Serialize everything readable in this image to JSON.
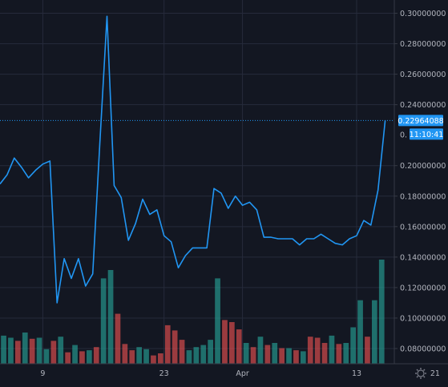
{
  "colors": {
    "background": "#131722",
    "grid": "#262b3b",
    "axis_text": "#b2b5be",
    "line": "#2196f3",
    "price_label_bg": "#2196f3",
    "volume_up": "#26a69a",
    "volume_down": "#ef5350"
  },
  "chart_data": {
    "type": "line",
    "ylim": [
      0.07,
      0.31
    ],
    "y_ticks": [
      "0.30000000",
      "0.28000000",
      "0.26000000",
      "0.24000000",
      "0.20000000",
      "0.18000000",
      "0.16000000",
      "0.14000000",
      "0.12000000",
      "0.10000000",
      "0.08000000"
    ],
    "y_tick_values": [
      0.3,
      0.28,
      0.26,
      0.24,
      0.2,
      0.18,
      0.16,
      0.14,
      0.12,
      0.1,
      0.08
    ],
    "x_ticks": [
      "9",
      "23",
      "Apr",
      "13",
      "21"
    ],
    "x_tick_index": [
      6,
      23,
      34,
      50,
      61
    ],
    "series": [
      {
        "values": [
          0.188,
          0.194,
          0.205,
          0.199,
          0.192,
          0.197,
          0.201,
          0.203,
          0.11,
          0.139,
          0.126,
          0.139,
          0.121,
          0.129,
          0.215,
          0.298,
          0.187,
          0.179,
          0.151,
          0.162,
          0.178,
          0.168,
          0.171,
          0.154,
          0.15,
          0.133,
          0.141,
          0.146,
          0.146,
          0.146,
          0.185,
          0.182,
          0.172,
          0.18,
          0.174,
          0.176,
          0.171,
          0.153,
          0.153,
          0.152,
          0.152,
          0.152,
          0.148,
          0.152,
          0.152,
          0.155,
          0.152,
          0.149,
          0.148,
          0.152,
          0.154,
          0.164,
          0.161,
          0.184,
          0.2296
        ]
      }
    ],
    "volume": {
      "values": [
        0.27,
        0.25,
        0.22,
        0.3,
        0.24,
        0.25,
        0.14,
        0.22,
        0.26,
        0.11,
        0.18,
        0.12,
        0.13,
        0.16,
        0.82,
        0.9,
        0.48,
        0.19,
        0.13,
        0.16,
        0.14,
        0.08,
        0.1,
        0.37,
        0.32,
        0.23,
        0.13,
        0.16,
        0.18,
        0.23,
        0.82,
        0.42,
        0.4,
        0.33,
        0.2,
        0.16,
        0.26,
        0.18,
        0.2,
        0.15,
        0.15,
        0.13,
        0.12,
        0.26,
        0.25,
        0.2,
        0.27,
        0.19,
        0.2,
        0.35,
        0.61,
        0.26,
        0.61,
        1.0
      ],
      "directions": [
        "up",
        "up",
        "down",
        "up",
        "down",
        "up",
        "up",
        "down",
        "up",
        "down",
        "up",
        "down",
        "up",
        "down",
        "up",
        "up",
        "down",
        "down",
        "down",
        "up",
        "up",
        "down",
        "down",
        "down",
        "down",
        "down",
        "up",
        "up",
        "up",
        "up",
        "up",
        "down",
        "down",
        "down",
        "up",
        "down",
        "up",
        "down",
        "up",
        "down",
        "up",
        "down",
        "up",
        "down",
        "down",
        "down",
        "up",
        "down",
        "up",
        "up",
        "up",
        "down",
        "up",
        "up"
      ]
    },
    "last_price": "0.22964088",
    "countdown": "11:10:41",
    "hidden_tick_partial": "0.",
    "grid": true
  }
}
